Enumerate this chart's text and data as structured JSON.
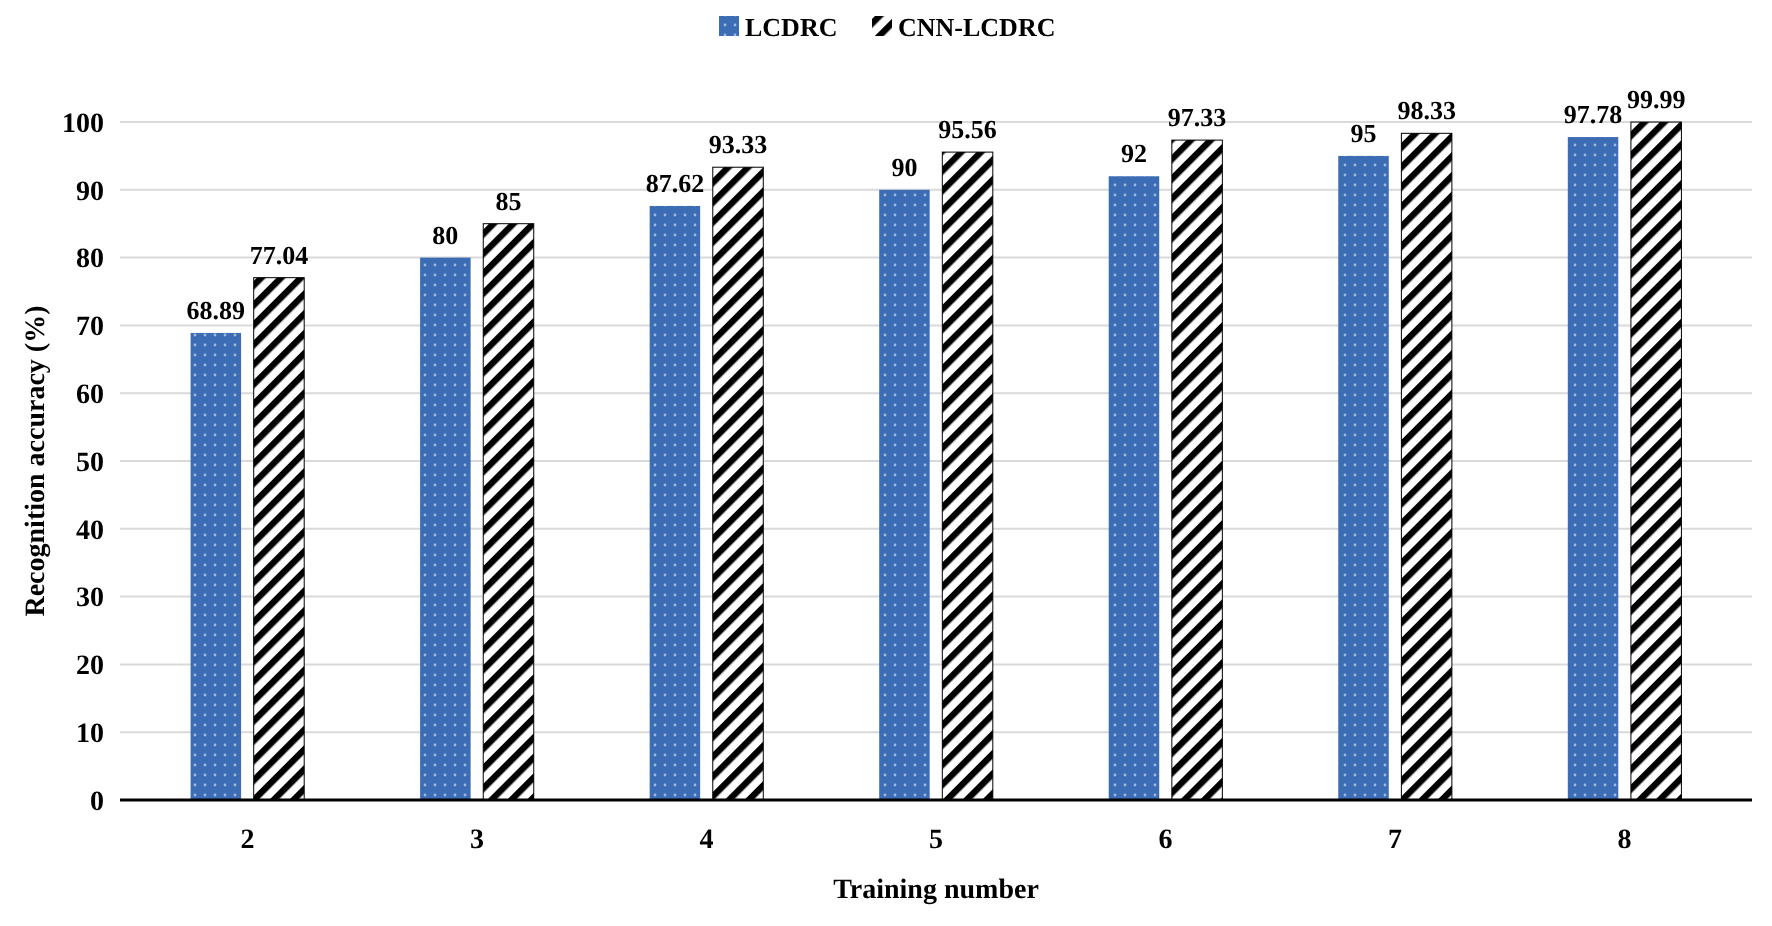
{
  "chart_data": {
    "type": "bar",
    "xlabel": "Training number",
    "ylabel": "Recognition accuracy (%)",
    "categories": [
      "2",
      "3",
      "4",
      "5",
      "6",
      "7",
      "8"
    ],
    "series": [
      {
        "name": "LCDRC",
        "color": "#3b6cb4",
        "values": [
          68.89,
          80,
          87.62,
          90,
          92,
          95,
          97.78
        ]
      },
      {
        "name": "CNN-LCDRC",
        "color": "#000000",
        "values": [
          77.04,
          85,
          93.33,
          95.56,
          97.33,
          98.33,
          99.99
        ]
      }
    ],
    "ylim": [
      0,
      100
    ],
    "yticks": [
      0,
      10,
      20,
      30,
      40,
      50,
      60,
      70,
      80,
      90,
      100
    ],
    "grid": "y",
    "legend": "top",
    "data_labels": true
  }
}
